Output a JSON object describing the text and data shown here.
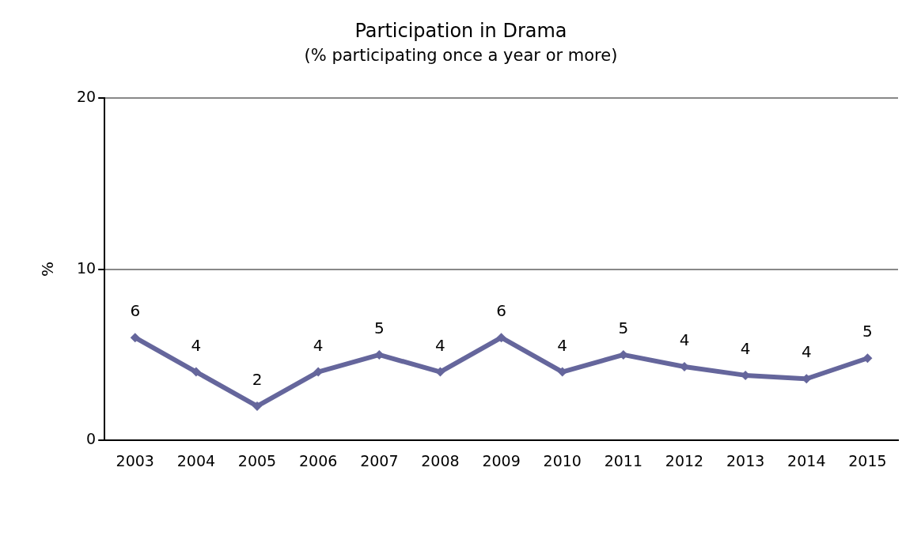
{
  "chart_data": {
    "type": "line",
    "title": "Participation in Drama",
    "subtitle": "(% participating once a year or more)",
    "ylabel": "%",
    "categories": [
      "2003",
      "2004",
      "2005",
      "2006",
      "2007",
      "2008",
      "2009",
      "2010",
      "2011",
      "2012",
      "2013",
      "2014",
      "2015"
    ],
    "series": [
      {
        "color": "#65669c",
        "values": [
          6,
          4,
          2,
          4,
          5,
          4,
          6,
          4,
          5,
          4.3,
          3.8,
          3.6,
          4.8
        ],
        "value_labels": [
          "6",
          "4",
          "2",
          "4",
          "5",
          "4",
          "6",
          "4",
          "5",
          "4",
          "4",
          "4",
          "5"
        ]
      }
    ],
    "ylim": [
      0,
      20
    ],
    "yticks": [
      0,
      10,
      20
    ],
    "grid": "y",
    "legend": false,
    "marker": "diamond",
    "line_style": "solid"
  }
}
